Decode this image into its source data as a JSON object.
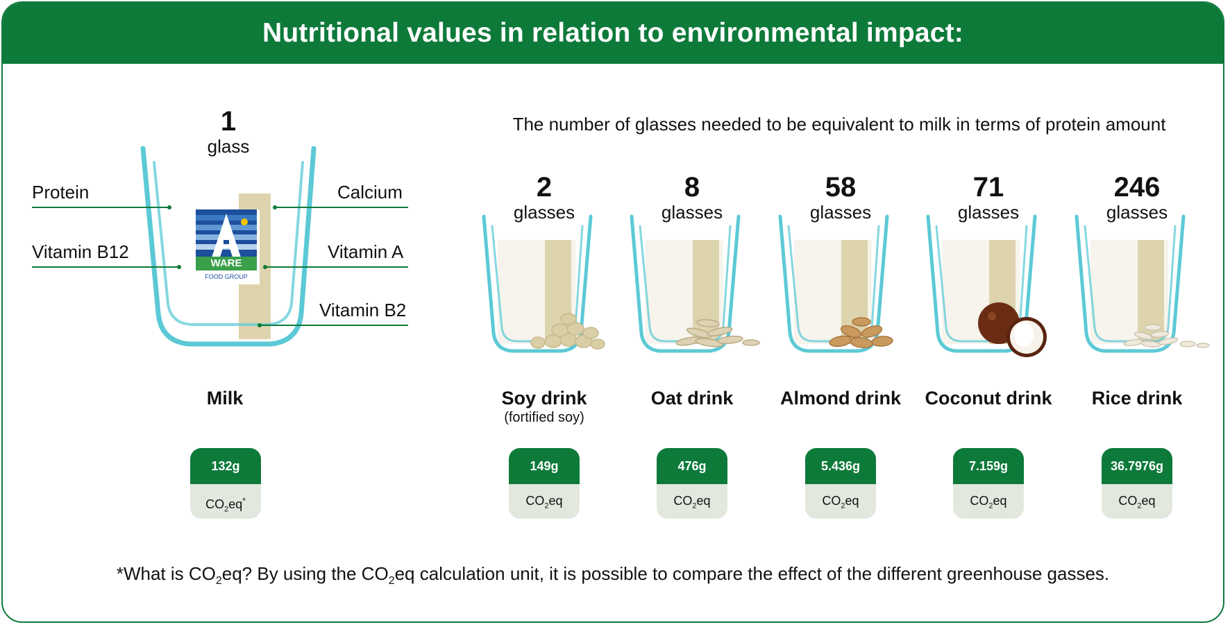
{
  "title": "Nutritional values in relation to environmental impact:",
  "subtitle": "The number of glasses needed to be equivalent to milk in terms of protein amount",
  "milk": {
    "count": "1",
    "unit": "glass",
    "name": "Milk",
    "co2_value": "132g",
    "co2_label_main": "CO",
    "co2_label_sub": "2",
    "co2_label_tail": "eq",
    "co2_asterisk": "*",
    "nutrients_left": [
      "Protein",
      "Vitamin B12"
    ],
    "nutrients_right": [
      "Calcium",
      "Vitamin A",
      "Vitamin B2"
    ],
    "logo": {
      "text": "WARE",
      "subtext": "FOOD GROUP",
      "letter": "A"
    }
  },
  "drinks": [
    {
      "count": "2",
      "unit": "glasses",
      "name": "Soy drink",
      "note": "(fortified soy)",
      "co2_value": "149g",
      "food": "soybeans-icon"
    },
    {
      "count": "8",
      "unit": "glasses",
      "name": "Oat drink",
      "note": "",
      "co2_value": "476g",
      "food": "oats-icon"
    },
    {
      "count": "58",
      "unit": "glasses",
      "name": "Almond drink",
      "note": "",
      "co2_value": "5.436g",
      "food": "almonds-icon"
    },
    {
      "count": "71",
      "unit": "glasses",
      "name": "Coconut drink",
      "note": "",
      "co2_value": "7.159g",
      "food": "coconut-icon"
    },
    {
      "count": "246",
      "unit": "glasses",
      "name": "Rice drink",
      "note": "",
      "co2_value": "36.7976g",
      "food": "rice-icon"
    }
  ],
  "co2_unit": {
    "main": "CO",
    "sub": "2",
    "tail": "eq"
  },
  "footnote": {
    "part1": "*What is CO",
    "sub1": "2",
    "part2": "eq? By using the CO",
    "sub2": "2",
    "part3": "eq calculation unit, it is possible to compare the effect of the different greenhouse gasses."
  },
  "colors": {
    "brand_green": "#0d7a3a",
    "glass_blue": "#5cc9d6",
    "drink_beige": "#ddd4ad",
    "badge_grey": "#e3e8df"
  }
}
